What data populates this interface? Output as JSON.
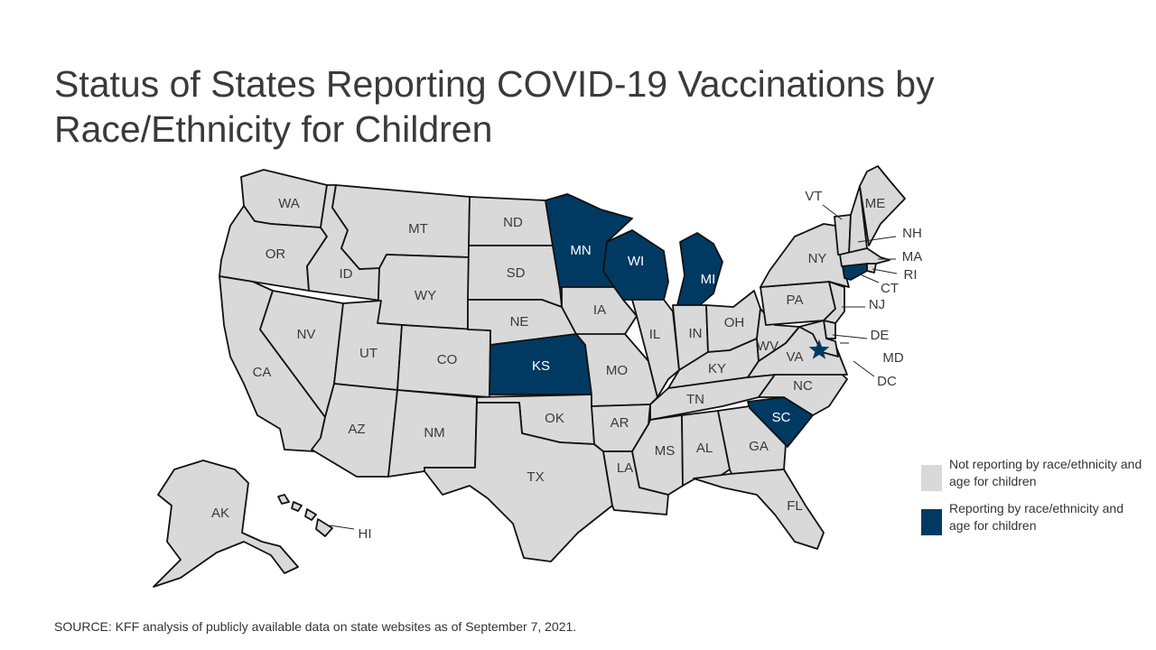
{
  "title": "Status of States Reporting COVID-19 Vaccinations by Race/Ethnicity for Children",
  "source": "SOURCE: KFF analysis of publicly available data on state websites as of September 7, 2021.",
  "colors": {
    "not_reporting": "#d9d9d9",
    "reporting": "#003a63",
    "border": "#111111",
    "label_dark": "#3a3a3a",
    "label_light": "#ffffff"
  },
  "legend": [
    {
      "key": "not_reporting",
      "label": "Not reporting by race/ethnicity and age for children"
    },
    {
      "key": "reporting",
      "label": "Reporting by race/ethnicity and age for children"
    }
  ],
  "states": [
    {
      "abbr": "WA",
      "status": "not_reporting"
    },
    {
      "abbr": "OR",
      "status": "not_reporting"
    },
    {
      "abbr": "CA",
      "status": "not_reporting"
    },
    {
      "abbr": "ID",
      "status": "not_reporting"
    },
    {
      "abbr": "NV",
      "status": "not_reporting"
    },
    {
      "abbr": "MT",
      "status": "not_reporting"
    },
    {
      "abbr": "WY",
      "status": "not_reporting"
    },
    {
      "abbr": "UT",
      "status": "not_reporting"
    },
    {
      "abbr": "AZ",
      "status": "not_reporting"
    },
    {
      "abbr": "CO",
      "status": "not_reporting"
    },
    {
      "abbr": "NM",
      "status": "not_reporting"
    },
    {
      "abbr": "ND",
      "status": "not_reporting"
    },
    {
      "abbr": "SD",
      "status": "not_reporting"
    },
    {
      "abbr": "NE",
      "status": "not_reporting"
    },
    {
      "abbr": "KS",
      "status": "reporting"
    },
    {
      "abbr": "OK",
      "status": "not_reporting"
    },
    {
      "abbr": "TX",
      "status": "not_reporting"
    },
    {
      "abbr": "MN",
      "status": "reporting"
    },
    {
      "abbr": "IA",
      "status": "not_reporting"
    },
    {
      "abbr": "MO",
      "status": "not_reporting"
    },
    {
      "abbr": "AR",
      "status": "not_reporting"
    },
    {
      "abbr": "LA",
      "status": "not_reporting"
    },
    {
      "abbr": "WI",
      "status": "reporting"
    },
    {
      "abbr": "IL",
      "status": "not_reporting"
    },
    {
      "abbr": "MI",
      "status": "reporting"
    },
    {
      "abbr": "IN",
      "status": "not_reporting"
    },
    {
      "abbr": "OH",
      "status": "not_reporting"
    },
    {
      "abbr": "KY",
      "status": "not_reporting"
    },
    {
      "abbr": "TN",
      "status": "not_reporting"
    },
    {
      "abbr": "MS",
      "status": "not_reporting"
    },
    {
      "abbr": "AL",
      "status": "not_reporting"
    },
    {
      "abbr": "GA",
      "status": "not_reporting"
    },
    {
      "abbr": "FL",
      "status": "not_reporting"
    },
    {
      "abbr": "SC",
      "status": "reporting"
    },
    {
      "abbr": "NC",
      "status": "not_reporting"
    },
    {
      "abbr": "VA",
      "status": "not_reporting"
    },
    {
      "abbr": "WV",
      "status": "not_reporting"
    },
    {
      "abbr": "PA",
      "status": "not_reporting"
    },
    {
      "abbr": "NY",
      "status": "not_reporting"
    },
    {
      "abbr": "VT",
      "status": "not_reporting"
    },
    {
      "abbr": "NH",
      "status": "not_reporting"
    },
    {
      "abbr": "ME",
      "status": "not_reporting"
    },
    {
      "abbr": "MA",
      "status": "not_reporting"
    },
    {
      "abbr": "RI",
      "status": "not_reporting"
    },
    {
      "abbr": "CT",
      "status": "reporting"
    },
    {
      "abbr": "NJ",
      "status": "not_reporting"
    },
    {
      "abbr": "DE",
      "status": "not_reporting"
    },
    {
      "abbr": "MD",
      "status": "not_reporting"
    },
    {
      "abbr": "DC",
      "status": "reporting"
    },
    {
      "abbr": "AK",
      "status": "not_reporting"
    },
    {
      "abbr": "HI",
      "status": "not_reporting"
    }
  ]
}
